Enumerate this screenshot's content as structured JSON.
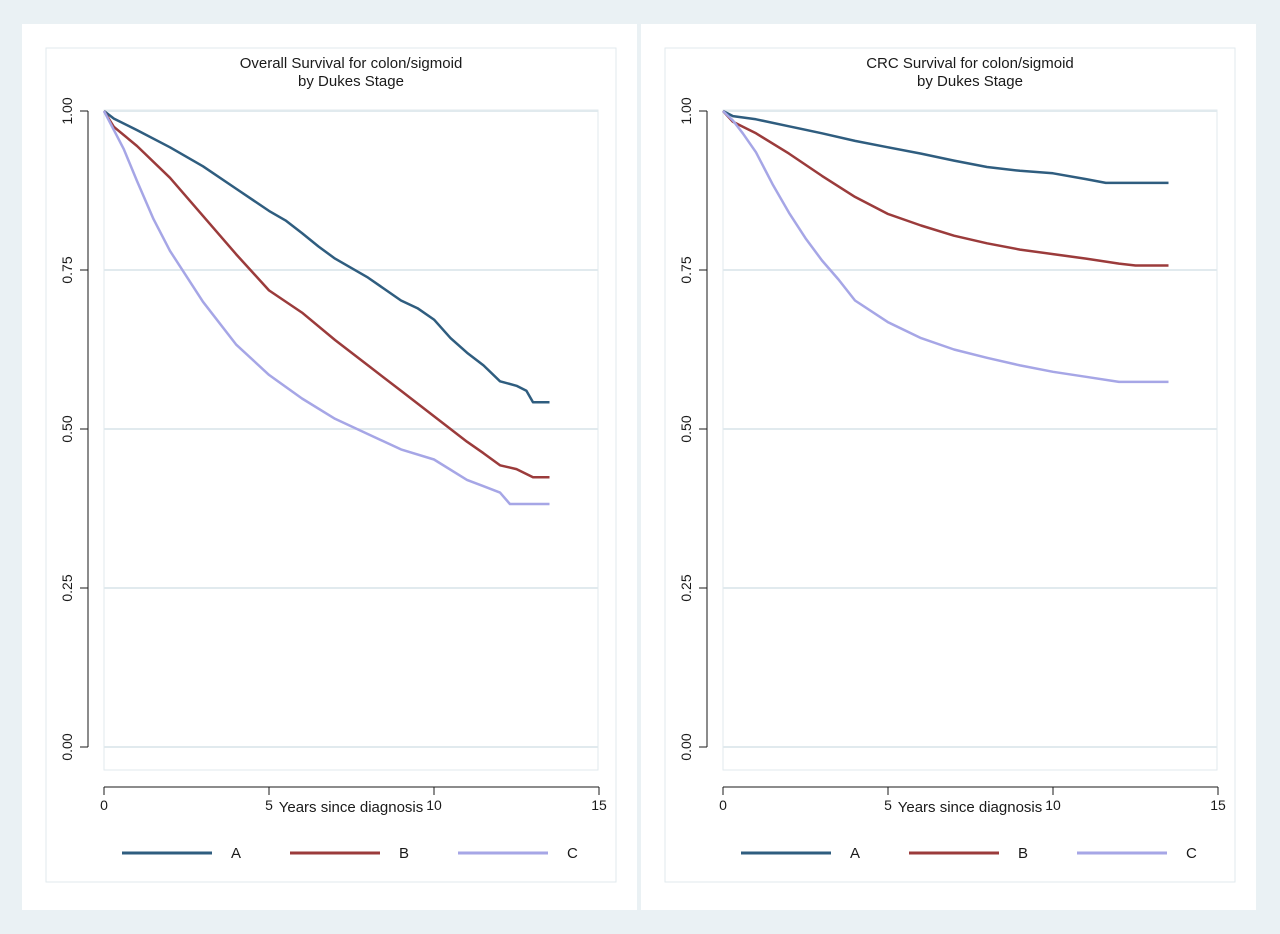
{
  "chart_data": [
    {
      "type": "line",
      "title": "Overall Survival for colon/sigmoid",
      "subtitle": "by Dukes Stage",
      "xlabel": "Years since diagnosis",
      "ylabel": "",
      "xlim": [
        0,
        15
      ],
      "ylim": [
        0,
        1
      ],
      "x_ticks": [
        "0",
        "5",
        "10",
        "15"
      ],
      "y_ticks": [
        "0.00",
        "0.25",
        "0.50",
        "0.75",
        "1.00"
      ],
      "grid": true,
      "legend_position": "bottom",
      "series": [
        {
          "name": "A",
          "color": "#2f5d7f",
          "x": [
            0,
            0.3,
            1,
            2,
            3,
            4,
            5,
            5.5,
            6,
            6.5,
            7,
            8,
            9,
            9.5,
            10,
            10.5,
            11,
            11.5,
            12,
            12.5,
            12.8,
            13,
            13.5
          ],
          "y": [
            1.0,
            0.988,
            0.97,
            0.943,
            0.913,
            0.878,
            0.843,
            0.828,
            0.808,
            0.787,
            0.768,
            0.738,
            0.702,
            0.69,
            0.672,
            0.643,
            0.62,
            0.6,
            0.575,
            0.568,
            0.56,
            0.542,
            0.542
          ]
        },
        {
          "name": "B",
          "color": "#9b3b3b",
          "x": [
            0,
            0.3,
            1,
            2,
            3,
            4,
            5,
            6,
            7,
            8,
            9,
            10,
            11,
            11.5,
            12,
            12.5,
            13,
            13.5
          ],
          "y": [
            1.0,
            0.975,
            0.945,
            0.895,
            0.835,
            0.775,
            0.718,
            0.683,
            0.64,
            0.6,
            0.56,
            0.52,
            0.48,
            0.462,
            0.443,
            0.437,
            0.424,
            0.424
          ]
        },
        {
          "name": "C",
          "color": "#a6a6e6",
          "x": [
            0,
            0.3,
            0.6,
            1,
            1.5,
            2,
            3,
            4,
            5,
            6,
            7,
            8,
            9,
            10,
            11,
            11.5,
            12,
            12.3,
            13,
            13.5
          ],
          "y": [
            1.0,
            0.97,
            0.94,
            0.89,
            0.83,
            0.78,
            0.7,
            0.633,
            0.585,
            0.548,
            0.516,
            0.492,
            0.468,
            0.452,
            0.42,
            0.41,
            0.4,
            0.382,
            0.382,
            0.382
          ]
        }
      ]
    },
    {
      "type": "line",
      "title": "CRC Survival for colon/sigmoid",
      "subtitle": "by Dukes Stage",
      "xlabel": "Years since diagnosis",
      "ylabel": "",
      "xlim": [
        0,
        15
      ],
      "ylim": [
        0,
        1
      ],
      "x_ticks": [
        "0",
        "5",
        "10",
        "15"
      ],
      "y_ticks": [
        "0.00",
        "0.25",
        "0.50",
        "0.75",
        "1.00"
      ],
      "grid": true,
      "legend_position": "bottom",
      "series": [
        {
          "name": "A",
          "color": "#2f5d7f",
          "x": [
            0,
            0.3,
            1,
            2,
            3,
            4,
            5,
            6,
            7,
            8,
            9,
            10,
            11,
            11.6,
            12,
            13.5
          ],
          "y": [
            1.0,
            0.992,
            0.987,
            0.976,
            0.965,
            0.953,
            0.943,
            0.933,
            0.922,
            0.912,
            0.906,
            0.902,
            0.893,
            0.887,
            0.887,
            0.887
          ]
        },
        {
          "name": "B",
          "color": "#9b3b3b",
          "x": [
            0,
            0.3,
            1,
            2,
            3,
            4,
            5,
            6,
            7,
            8,
            9,
            10,
            11,
            12,
            12.5,
            13.5
          ],
          "y": [
            1.0,
            0.983,
            0.965,
            0.933,
            0.898,
            0.865,
            0.838,
            0.82,
            0.804,
            0.792,
            0.782,
            0.775,
            0.768,
            0.76,
            0.757,
            0.757
          ]
        },
        {
          "name": "C",
          "color": "#a6a6e6",
          "x": [
            0,
            0.3,
            0.6,
            1,
            1.5,
            2,
            2.5,
            3,
            3.5,
            4,
            5,
            6,
            7,
            8,
            9,
            10,
            11,
            12,
            13.5
          ],
          "y": [
            1.0,
            0.985,
            0.965,
            0.935,
            0.885,
            0.84,
            0.8,
            0.765,
            0.735,
            0.702,
            0.668,
            0.643,
            0.625,
            0.612,
            0.6,
            0.59,
            0.582,
            0.574,
            0.574
          ]
        }
      ]
    }
  ]
}
